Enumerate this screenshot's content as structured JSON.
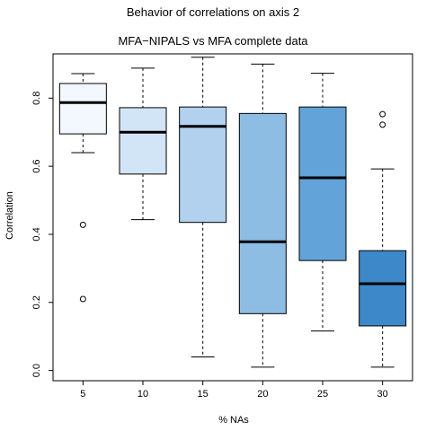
{
  "chart_data": {
    "type": "boxplot",
    "title": "Behavior of correlations on axis 2",
    "subtitle": "MFA−NIPALS vs MFA complete data",
    "xlabel": "% NAs",
    "ylabel": "Correlation",
    "ylim": [
      -0.03,
      0.93
    ],
    "yticks": [
      0.0,
      0.2,
      0.4,
      0.6,
      0.8
    ],
    "grid": false,
    "categories": [
      "5",
      "10",
      "15",
      "20",
      "25",
      "30"
    ],
    "boxes": [
      {
        "category": "5",
        "whisker_low": 0.64,
        "q1": 0.695,
        "median": 0.787,
        "q3": 0.843,
        "whisker_high": 0.872,
        "outliers": [
          0.428,
          0.21
        ],
        "color": "#f2f8fe"
      },
      {
        "category": "10",
        "whisker_low": 0.443,
        "q1": 0.577,
        "median": 0.7,
        "q3": 0.772,
        "whisker_high": 0.888,
        "outliers": [],
        "color": "#d2e5f6"
      },
      {
        "category": "15",
        "whisker_low": 0.04,
        "q1": 0.435,
        "median": 0.717,
        "q3": 0.774,
        "whisker_high": 0.92,
        "outliers": [],
        "color": "#b1d1ee"
      },
      {
        "category": "20",
        "whisker_low": 0.01,
        "q1": 0.167,
        "median": 0.378,
        "q3": 0.755,
        "whisker_high": 0.9,
        "outliers": [],
        "color": "#8dbde3"
      },
      {
        "category": "25",
        "whisker_low": 0.116,
        "q1": 0.323,
        "median": 0.566,
        "q3": 0.774,
        "whisker_high": 0.873,
        "outliers": [],
        "color": "#62a3d9"
      },
      {
        "category": "30",
        "whisker_low": 0.01,
        "q1": 0.131,
        "median": 0.255,
        "q3": 0.352,
        "whisker_high": 0.592,
        "outliers": [
          0.753,
          0.722
        ],
        "color": "#3d88c8"
      }
    ]
  }
}
